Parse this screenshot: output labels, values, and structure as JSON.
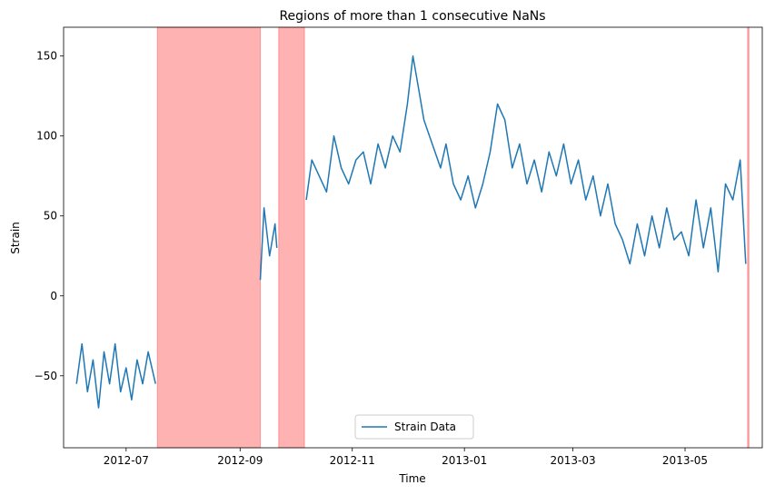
{
  "chart_data": {
    "type": "line",
    "title": "Regions of more than 1 consecutive NaNs",
    "xlabel": "Time",
    "ylabel": "Strain",
    "xlim": [
      "2012-05-28",
      "2013-06-12"
    ],
    "ylim": [
      -95,
      168
    ],
    "x_ticks": [
      {
        "date": "2012-07-01",
        "label": "2012-07"
      },
      {
        "date": "2012-09-01",
        "label": "2012-09"
      },
      {
        "date": "2012-11-01",
        "label": "2012-11"
      },
      {
        "date": "2013-01-01",
        "label": "2013-01"
      },
      {
        "date": "2013-03-01",
        "label": "2013-03"
      },
      {
        "date": "2013-05-01",
        "label": "2013-05"
      }
    ],
    "y_ticks": [
      -50,
      0,
      50,
      100,
      150
    ],
    "grid": false,
    "legend": {
      "position": "lower center",
      "entries": [
        {
          "label": "Strain Data",
          "color": "#1f77b4"
        }
      ]
    },
    "nan_regions": [
      {
        "start": "2012-07-18",
        "end": "2012-09-12"
      },
      {
        "start": "2012-09-22",
        "end": "2012-10-06"
      },
      {
        "start": "2013-06-04",
        "end": "2013-06-04"
      }
    ],
    "nan_region_color": "#ff0000",
    "series": [
      {
        "name": "Strain Data",
        "color": "#1f77b4",
        "x": [
          "2012-06-04",
          "2012-06-07",
          "2012-06-10",
          "2012-06-13",
          "2012-06-16",
          "2012-06-19",
          "2012-06-22",
          "2012-06-25",
          "2012-06-28",
          "2012-07-01",
          "2012-07-04",
          "2012-07-07",
          "2012-07-10",
          "2012-07-13",
          "2012-07-17",
          "2012-09-12",
          "2012-09-14",
          "2012-09-17",
          "2012-09-20",
          "2012-09-21",
          "2012-10-07",
          "2012-10-10",
          "2012-10-14",
          "2012-10-18",
          "2012-10-22",
          "2012-10-26",
          "2012-10-30",
          "2012-11-03",
          "2012-11-07",
          "2012-11-11",
          "2012-11-15",
          "2012-11-19",
          "2012-11-23",
          "2012-11-27",
          "2012-12-01",
          "2012-12-04",
          "2012-12-07",
          "2012-12-10",
          "2012-12-13",
          "2012-12-16",
          "2012-12-19",
          "2012-12-22",
          "2012-12-26",
          "2012-12-30",
          "2013-01-03",
          "2013-01-07",
          "2013-01-11",
          "2013-01-15",
          "2013-01-19",
          "2013-01-23",
          "2013-01-27",
          "2013-01-31",
          "2013-02-04",
          "2013-02-08",
          "2013-02-12",
          "2013-02-16",
          "2013-02-20",
          "2013-02-24",
          "2013-02-28",
          "2013-03-04",
          "2013-03-08",
          "2013-03-12",
          "2013-03-16",
          "2013-03-20",
          "2013-03-24",
          "2013-03-28",
          "2013-04-01",
          "2013-04-05",
          "2013-04-09",
          "2013-04-13",
          "2013-04-17",
          "2013-04-21",
          "2013-04-25",
          "2013-04-29",
          "2013-05-03",
          "2013-05-07",
          "2013-05-11",
          "2013-05-15",
          "2013-05-19",
          "2013-05-23",
          "2013-05-27",
          "2013-05-31",
          "2013-06-03"
        ],
        "y": [
          -55,
          -30,
          -60,
          -40,
          -70,
          -35,
          -55,
          -30,
          -60,
          -45,
          -65,
          -40,
          -55,
          -35,
          -55,
          10,
          55,
          25,
          45,
          30,
          60,
          85,
          75,
          65,
          100,
          80,
          70,
          85,
          90,
          70,
          95,
          80,
          100,
          90,
          120,
          150,
          130,
          110,
          100,
          90,
          80,
          95,
          70,
          60,
          75,
          55,
          70,
          90,
          120,
          110,
          80,
          95,
          70,
          85,
          65,
          90,
          75,
          95,
          70,
          85,
          60,
          75,
          50,
          70,
          45,
          35,
          20,
          45,
          25,
          50,
          30,
          55,
          35,
          40,
          25,
          60,
          30,
          55,
          15,
          70,
          60,
          85,
          20
        ]
      }
    ]
  }
}
